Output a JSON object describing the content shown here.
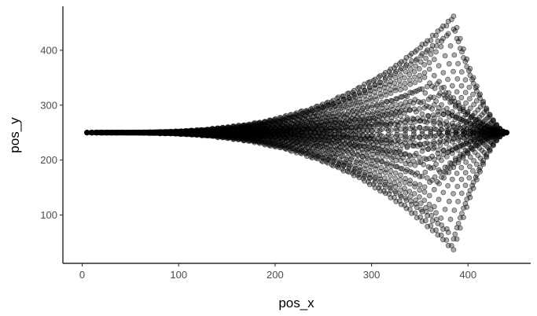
{
  "chart_data": {
    "type": "scatter",
    "title": "",
    "xlabel": "pos_x",
    "ylabel": "pos_y",
    "xlim": [
      -20,
      465
    ],
    "ylim": [
      12,
      480
    ],
    "x_ticks": [
      0,
      100,
      200,
      300,
      400
    ],
    "y_ticks": [
      100,
      200,
      300,
      400
    ],
    "grid": false,
    "legend": "none",
    "point_color": "#000000",
    "point_opacity": 0.55,
    "series": [
      {
        "description_note_free": true,
        "trajectory_count": 40,
        "start": [
          5,
          250
        ],
        "end": [
          440,
          250
        ],
        "trajectory_peaks": [
          {
            "x": 385,
            "y": 462
          },
          {
            "x": 383,
            "y": 455
          },
          {
            "x": 385,
            "y": 440
          },
          {
            "x": 378,
            "y": 425
          },
          {
            "x": 372,
            "y": 405
          },
          {
            "x": 365,
            "y": 385
          },
          {
            "x": 360,
            "y": 365
          },
          {
            "x": 355,
            "y": 350
          },
          {
            "x": 368,
            "y": 340
          },
          {
            "x": 350,
            "y": 330
          },
          {
            "x": 375,
            "y": 320
          },
          {
            "x": 345,
            "y": 310
          },
          {
            "x": 365,
            "y": 300
          },
          {
            "x": 340,
            "y": 292
          },
          {
            "x": 380,
            "y": 285
          },
          {
            "x": 330,
            "y": 280
          },
          {
            "x": 360,
            "y": 272
          },
          {
            "x": 320,
            "y": 265
          },
          {
            "x": 350,
            "y": 258
          },
          {
            "x": 300,
            "y": 255
          },
          {
            "x": 300,
            "y": 245
          },
          {
            "x": 350,
            "y": 242
          },
          {
            "x": 320,
            "y": 235
          },
          {
            "x": 360,
            "y": 228
          },
          {
            "x": 330,
            "y": 220
          },
          {
            "x": 380,
            "y": 215
          },
          {
            "x": 340,
            "y": 208
          },
          {
            "x": 365,
            "y": 200
          },
          {
            "x": 345,
            "y": 190
          },
          {
            "x": 375,
            "y": 180
          },
          {
            "x": 350,
            "y": 170
          },
          {
            "x": 368,
            "y": 160
          },
          {
            "x": 355,
            "y": 150
          },
          {
            "x": 360,
            "y": 135
          },
          {
            "x": 365,
            "y": 115
          },
          {
            "x": 372,
            "y": 95
          },
          {
            "x": 378,
            "y": 75
          },
          {
            "x": 385,
            "y": 58
          },
          {
            "x": 383,
            "y": 45
          },
          {
            "x": 385,
            "y": 35
          }
        ]
      }
    ]
  }
}
